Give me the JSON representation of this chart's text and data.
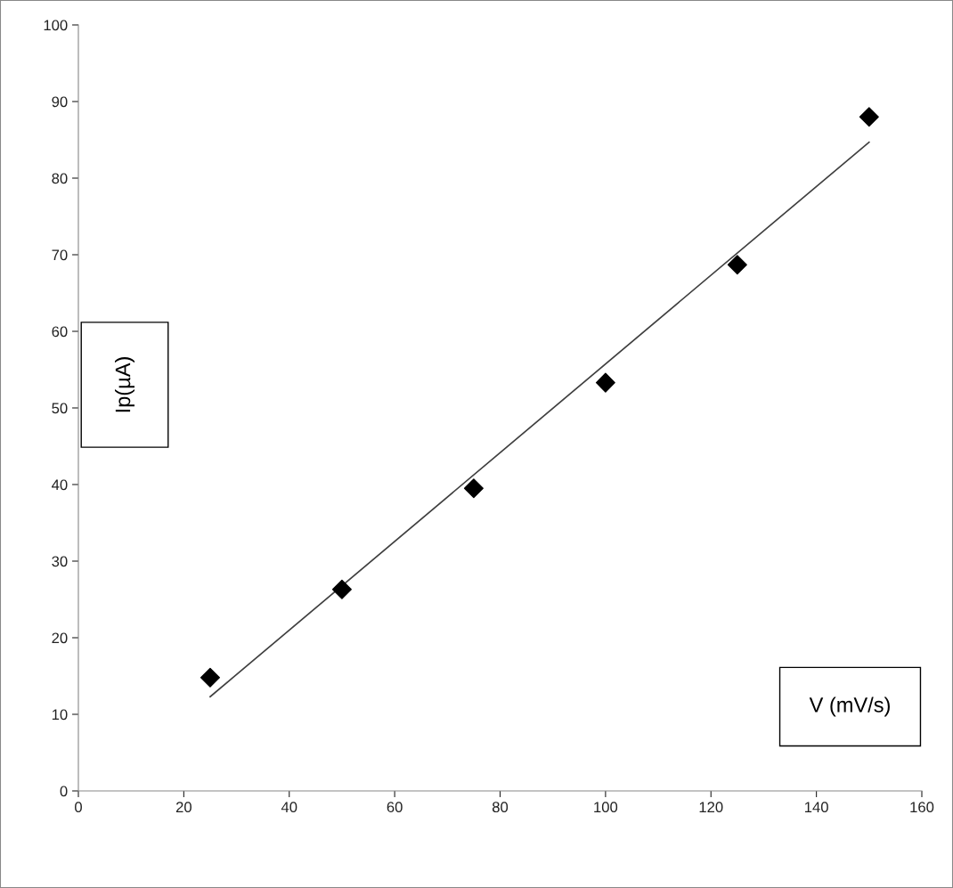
{
  "chart_data": {
    "type": "scatter",
    "xlabel": "V (mV/s)",
    "ylabel": "Ip(µA)",
    "x": [
      25,
      50,
      75,
      100,
      125,
      150
    ],
    "series": [
      {
        "color": "#000000",
        "marker": "diamond",
        "values": [
          14.8,
          26.3,
          39.5,
          53.3,
          68.7,
          88.0
        ]
      },
      {
        "type": "line",
        "color": "#404040",
        "x": [
          25,
          150
        ],
        "values": [
          12.3,
          84.7
        ]
      }
    ],
    "xlim": [
      0,
      160
    ],
    "ylim": [
      0,
      100
    ],
    "xticks": [
      0,
      20,
      40,
      60,
      80,
      100,
      120,
      140,
      160
    ],
    "yticks": [
      0,
      10,
      20,
      30,
      40,
      50,
      60,
      70,
      80,
      90,
      100
    ],
    "grid": false,
    "legend": false
  }
}
